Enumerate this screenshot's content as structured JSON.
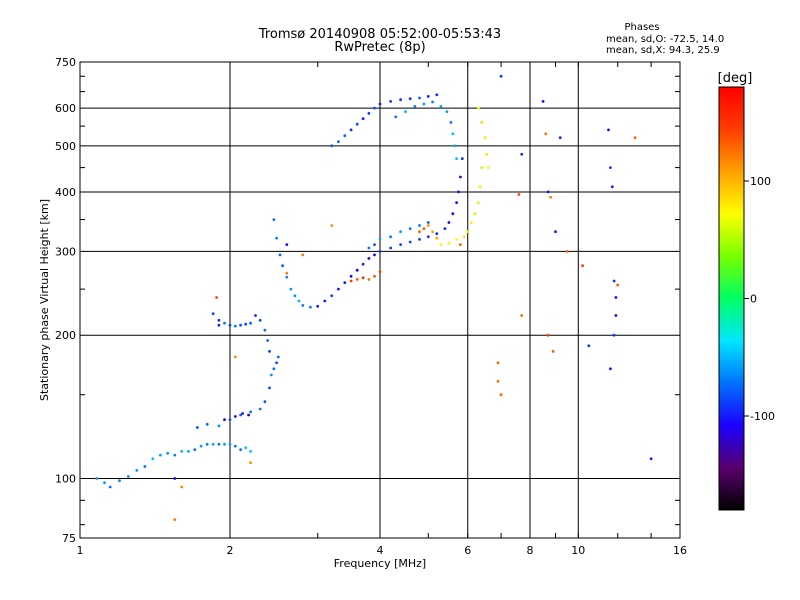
{
  "chart_data": {
    "type": "scatter",
    "title": "Tromsø 20140908 05:52:00-05:53:43",
    "subtitle": "RwPretec (8p)",
    "xlabel": "Frequency [MHz]",
    "ylabel": "Stationary phase Virtual Height [km]",
    "x_scale": "log",
    "y_scale": "log",
    "xlim": [
      1,
      16
    ],
    "ylim": [
      75,
      750
    ],
    "x_ticks": [
      "1",
      "2",
      "4",
      "6",
      "8",
      "10",
      "16"
    ],
    "y_ticks": [
      "750",
      "600",
      "500",
      "400",
      "300",
      "200",
      "100",
      "75"
    ],
    "grid": true,
    "legend_title": "Phases",
    "legend_lines": [
      "mean, sd,O: -72.5, 14.0",
      "mean, sd,X: 94.3, 25.9"
    ],
    "colorbar": {
      "title": "[deg]",
      "range": [
        -180,
        180
      ],
      "ticks": [
        "100",
        "0",
        "-100"
      ],
      "colors": [
        "#000000",
        "#5a006e",
        "#1a00ff",
        "#0072ff",
        "#00e6ff",
        "#00ff64",
        "#78ff00",
        "#ffff00",
        "#ffa000",
        "#ff3c00",
        "#ff0000"
      ]
    },
    "series": [
      {
        "points": [
          [
            1.08,
            100
          ],
          [
            1.12,
            98
          ],
          [
            1.15,
            96
          ],
          [
            1.2,
            99
          ],
          [
            1.25,
            101
          ],
          [
            1.3,
            104
          ],
          [
            1.35,
            106
          ],
          [
            1.4,
            110
          ],
          [
            1.45,
            112
          ],
          [
            1.5,
            113
          ],
          [
            1.55,
            112
          ],
          [
            1.6,
            114
          ],
          [
            1.65,
            114
          ],
          [
            1.7,
            115
          ],
          [
            1.75,
            117
          ],
          [
            1.8,
            118
          ],
          [
            1.85,
            118
          ],
          [
            1.9,
            118
          ],
          [
            1.95,
            118
          ],
          [
            2.0,
            118
          ],
          [
            2.05,
            117
          ],
          [
            2.1,
            115
          ],
          [
            2.15,
            116
          ],
          [
            2.2,
            114
          ]
        ],
        "phase": -60
      },
      {
        "points": [
          [
            1.72,
            128
          ],
          [
            1.8,
            130
          ],
          [
            1.9,
            129
          ],
          [
            2.0,
            133
          ],
          [
            2.1,
            136
          ],
          [
            2.2,
            138
          ],
          [
            2.3,
            140
          ],
          [
            2.35,
            145
          ],
          [
            2.4,
            155
          ],
          [
            2.42,
            165
          ],
          [
            2.45,
            170
          ],
          [
            2.48,
            175
          ],
          [
            2.5,
            180
          ]
        ],
        "phase": -75
      },
      {
        "points": [
          [
            1.95,
            133
          ],
          [
            2.05,
            135
          ],
          [
            2.12,
            137
          ],
          [
            2.18,
            136
          ]
        ],
        "phase": -110
      },
      {
        "points": [
          [
            1.85,
            222
          ],
          [
            1.9,
            215
          ],
          [
            1.95,
            212
          ],
          [
            2.0,
            210
          ],
          [
            2.05,
            209
          ],
          [
            2.1,
            210
          ],
          [
            2.15,
            211
          ],
          [
            2.2,
            212
          ],
          [
            2.3,
            215
          ],
          [
            2.35,
            205
          ],
          [
            2.38,
            195
          ],
          [
            2.4,
            185
          ]
        ],
        "phase": -80
      },
      {
        "points": [
          [
            2.45,
            350
          ],
          [
            2.48,
            320
          ],
          [
            2.52,
            295
          ],
          [
            2.55,
            280
          ],
          [
            2.6,
            265
          ],
          [
            2.65,
            250
          ],
          [
            2.7,
            242
          ],
          [
            2.75,
            236
          ],
          [
            2.8,
            231
          ],
          [
            2.9,
            229
          ]
        ],
        "phase": -65
      },
      {
        "points": [
          [
            3.0,
            230
          ],
          [
            3.1,
            236
          ],
          [
            3.2,
            242
          ],
          [
            3.3,
            250
          ],
          [
            3.4,
            258
          ],
          [
            3.5,
            266
          ],
          [
            3.6,
            274
          ],
          [
            3.7,
            282
          ],
          [
            3.8,
            290
          ],
          [
            3.9,
            295
          ],
          [
            4.0,
            300
          ],
          [
            4.2,
            305
          ],
          [
            4.4,
            310
          ],
          [
            4.6,
            314
          ],
          [
            4.8,
            318
          ],
          [
            5.0,
            322
          ],
          [
            5.2,
            327
          ],
          [
            5.4,
            335
          ],
          [
            5.5,
            345
          ],
          [
            5.6,
            360
          ],
          [
            5.7,
            380
          ],
          [
            5.75,
            400
          ],
          [
            5.8,
            430
          ],
          [
            5.85,
            470
          ]
        ],
        "phase": -100
      },
      {
        "points": [
          [
            3.5,
            260
          ],
          [
            3.6,
            262
          ],
          [
            3.7,
            264
          ],
          [
            3.8,
            262
          ],
          [
            3.9,
            266
          ],
          [
            4.0,
            272
          ]
        ],
        "phase": 140
      },
      {
        "points": [
          [
            3.8,
            305
          ],
          [
            3.9,
            310
          ],
          [
            4.0,
            318
          ],
          [
            4.2,
            322
          ],
          [
            4.4,
            330
          ],
          [
            4.6,
            335
          ],
          [
            4.8,
            340
          ],
          [
            5.0,
            345
          ]
        ],
        "phase": -70
      },
      {
        "points": [
          [
            4.8,
            330
          ],
          [
            4.9,
            335
          ],
          [
            5.0,
            340
          ],
          [
            5.1,
            330
          ],
          [
            5.2,
            320
          ]
        ],
        "phase": 120
      },
      {
        "points": [
          [
            5.3,
            310
          ],
          [
            5.5,
            312
          ],
          [
            5.7,
            318
          ],
          [
            5.9,
            322
          ],
          [
            6.0,
            330
          ],
          [
            6.1,
            345
          ],
          [
            6.2,
            360
          ],
          [
            6.3,
            380
          ],
          [
            6.35,
            410
          ],
          [
            6.4,
            450
          ]
        ],
        "phase": 70
      },
      {
        "points": [
          [
            3.2,
            500
          ],
          [
            3.3,
            510
          ],
          [
            3.4,
            525
          ],
          [
            3.5,
            540
          ],
          [
            3.6,
            555
          ],
          [
            3.7,
            570
          ],
          [
            3.8,
            585
          ],
          [
            3.9,
            600
          ],
          [
            4.0,
            612
          ],
          [
            4.2,
            620
          ],
          [
            4.4,
            625
          ],
          [
            4.6,
            628
          ],
          [
            4.8,
            630
          ],
          [
            5.0,
            635
          ],
          [
            5.2,
            640
          ]
        ],
        "phase": -85
      },
      {
        "points": [
          [
            4.3,
            575
          ],
          [
            4.5,
            590
          ],
          [
            4.7,
            605
          ],
          [
            4.9,
            612
          ],
          [
            5.1,
            618
          ],
          [
            5.3,
            605
          ],
          [
            5.45,
            590
          ],
          [
            5.55,
            560
          ],
          [
            5.6,
            530
          ],
          [
            5.65,
            500
          ],
          [
            5.7,
            470
          ]
        ],
        "phase": -55
      },
      {
        "points": [
          [
            6.3,
            600
          ],
          [
            6.4,
            560
          ],
          [
            6.5,
            520
          ],
          [
            6.55,
            480
          ],
          [
            6.6,
            450
          ]
        ],
        "phase": 75
      },
      {
        "points": [
          [
            1.55,
            82
          ],
          [
            1.6,
            96
          ],
          [
            1.88,
            240
          ],
          [
            2.05,
            180
          ],
          [
            2.2,
            108
          ],
          [
            2.6,
            270
          ],
          [
            2.8,
            295
          ],
          [
            3.2,
            340
          ],
          [
            5.8,
            310
          ],
          [
            6.9,
            175
          ],
          [
            6.9,
            160
          ],
          [
            7.0,
            150
          ],
          [
            7.6,
            395
          ],
          [
            7.7,
            220
          ],
          [
            8.6,
            530
          ],
          [
            8.8,
            390
          ],
          [
            8.7,
            200
          ],
          [
            8.9,
            185
          ],
          [
            9.5,
            300
          ],
          [
            10.2,
            280
          ],
          [
            12.0,
            255
          ],
          [
            13.0,
            520
          ]
        ],
        "phase": 130
      },
      {
        "points": [
          [
            7.0,
            700
          ],
          [
            7.7,
            480
          ],
          [
            8.5,
            620
          ],
          [
            8.7,
            400
          ],
          [
            9.0,
            330
          ],
          [
            9.2,
            520
          ],
          [
            10.5,
            190
          ],
          [
            11.5,
            540
          ],
          [
            11.6,
            450
          ],
          [
            11.7,
            410
          ],
          [
            11.8,
            260
          ],
          [
            11.9,
            240
          ],
          [
            11.9,
            220
          ],
          [
            11.8,
            200
          ],
          [
            11.6,
            170
          ],
          [
            14.0,
            110
          ],
          [
            1.55,
            100
          ],
          [
            1.9,
            210
          ],
          [
            2.25,
            220
          ],
          [
            2.6,
            310
          ]
        ],
        "phase": -105
      }
    ]
  }
}
